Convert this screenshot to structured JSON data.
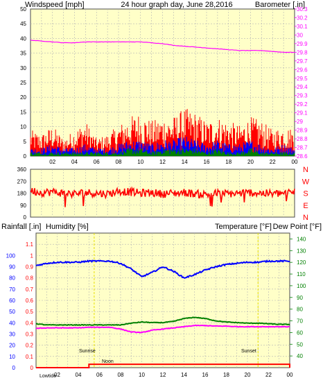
{
  "colors": {
    "plot_bg": "#ffffc8",
    "grid": "#b4b4b4",
    "frame": "#4a4a4a",
    "title": "#e8e000",
    "windspeed": "#ff0000",
    "barometer": "#ff00ff",
    "gust": "#ff0000",
    "avg": "#0000ff",
    "low": "#008000",
    "direction": "#ff0000",
    "rain": "#ff0000",
    "humidity": "#0000ff",
    "temperature": "#008000",
    "dewpoint": "#ff00ff",
    "sun": "#e8e000"
  },
  "chart_data": [
    {
      "type": "line",
      "title": "24 hour graph day, June 28,2016",
      "ylabel": "Windspeed [mph]",
      "y2label": "Barometer [.in]",
      "ylim": [
        0,
        50
      ],
      "y2lim": [
        28.6,
        30.3
      ],
      "yticks": [
        "0",
        "5",
        "10",
        "15",
        "20",
        "25",
        "30",
        "35",
        "40",
        "45",
        "50"
      ],
      "y2ticks": [
        "28.6",
        "28.7",
        "28.8",
        "28.9",
        "29",
        "29.1",
        "29.2",
        "29.3",
        "29.4",
        "29.5",
        "29.6",
        "29.7",
        "29.8",
        "29.9",
        "30",
        "30.1",
        "30.2",
        "30.3"
      ],
      "xticks": [
        "02",
        "04",
        "06",
        "08",
        "10",
        "12",
        "14",
        "16",
        "18",
        "20",
        "22",
        "00"
      ],
      "xlim": [
        0,
        24
      ],
      "grid": true,
      "series": [
        {
          "name": "Barometer",
          "axis": "right",
          "x": [
            0,
            1,
            2,
            3,
            4,
            5,
            6,
            7,
            8,
            9,
            10,
            11,
            12,
            13,
            14,
            15,
            16,
            17,
            18,
            19,
            20,
            21,
            22,
            23,
            24
          ],
          "values": [
            29.94,
            29.93,
            29.92,
            29.91,
            29.91,
            29.92,
            29.92,
            29.92,
            29.92,
            29.92,
            29.92,
            29.91,
            29.9,
            29.88,
            29.87,
            29.86,
            29.85,
            29.84,
            29.83,
            29.82,
            29.82,
            29.82,
            29.81,
            29.8,
            29.8
          ]
        },
        {
          "name": "Wind gust",
          "axis": "left",
          "x": [
            0,
            1,
            2,
            3,
            4,
            5,
            6,
            7,
            8,
            9,
            10,
            11,
            12,
            13,
            14,
            15,
            16,
            17,
            18,
            19,
            20,
            21,
            22,
            23,
            24
          ],
          "values": [
            6,
            5,
            7,
            4,
            6,
            8,
            4,
            5,
            7,
            9,
            10,
            8,
            9,
            9,
            11,
            10,
            8,
            9,
            8,
            7,
            9,
            8,
            6,
            7,
            6
          ]
        },
        {
          "name": "Wind average",
          "axis": "left",
          "x": [
            0,
            1,
            2,
            3,
            4,
            5,
            6,
            7,
            8,
            9,
            10,
            11,
            12,
            13,
            14,
            15,
            16,
            17,
            18,
            19,
            20,
            21,
            22,
            23,
            24
          ],
          "values": [
            2,
            2,
            3,
            2,
            2,
            3,
            2,
            2,
            3,
            4,
            4,
            3,
            4,
            4,
            5,
            4,
            3,
            4,
            3,
            3,
            4,
            3,
            2,
            3,
            2
          ]
        },
        {
          "name": "Wind low",
          "axis": "left",
          "x": [
            0,
            1,
            2,
            3,
            4,
            5,
            6,
            7,
            8,
            9,
            10,
            11,
            12,
            13,
            14,
            15,
            16,
            17,
            18,
            19,
            20,
            21,
            22,
            23,
            24
          ],
          "values": [
            1,
            1,
            1,
            1,
            1,
            1,
            1,
            1,
            1,
            2,
            2,
            1,
            2,
            2,
            2,
            2,
            1,
            2,
            1,
            1,
            2,
            1,
            1,
            1,
            1
          ]
        }
      ]
    },
    {
      "type": "scatter",
      "ylim": [
        0,
        360
      ],
      "yticks": [
        "0",
        "90",
        "180",
        "270",
        "360"
      ],
      "compass": [
        "N",
        "W",
        "S",
        "E",
        "N"
      ],
      "xlim": [
        0,
        24
      ],
      "series": [
        {
          "name": "Wind direction",
          "x": [
            0,
            1,
            2,
            3,
            4,
            5,
            6,
            7,
            8,
            9,
            10,
            11,
            12,
            13,
            14,
            15,
            16,
            17,
            18,
            19,
            20,
            21,
            22,
            23,
            24
          ],
          "values": [
            200,
            185,
            190,
            180,
            175,
            185,
            180,
            175,
            195,
            190,
            180,
            185,
            175,
            180,
            185,
            175,
            170,
            180,
            175,
            180,
            185,
            180,
            175,
            180,
            190
          ]
        }
      ]
    },
    {
      "type": "line",
      "ylabel": "Rainfall [.in]",
      "ylabel2": "Humidity [%]",
      "y2label": "Temperature [°F]",
      "y2label2": "Dew Point [°F]",
      "ylim": [
        0,
        1.2
      ],
      "yticks": [
        "0",
        "0.1",
        "0.2",
        "0.3",
        "0.4",
        "0.5",
        "0.6",
        "0.7",
        "0.8",
        "0.9",
        "1",
        "1.1"
      ],
      "humidity_ticks": [
        "0",
        "10",
        "20",
        "30",
        "40",
        "50",
        "60",
        "70",
        "80",
        "90",
        "100"
      ],
      "y2lim": [
        30,
        145
      ],
      "y2ticks": [
        "40",
        "50",
        "60",
        "70",
        "80",
        "90",
        "100",
        "110",
        "120",
        "130",
        "140"
      ],
      "xticks": [
        "02",
        "04",
        "06",
        "08",
        "10",
        "12",
        "14",
        "16",
        "18",
        "20",
        "22",
        "00"
      ],
      "xlim": [
        0,
        24
      ],
      "grid": true,
      "sun_labels": {
        "sunrise": "Sunrise",
        "noon": "Noon",
        "sunset": "Sunset",
        "moon": "Lowtide"
      },
      "series": [
        {
          "name": "Humidity",
          "axis": "humidity",
          "x": [
            0,
            1,
            2,
            3,
            4,
            5,
            6,
            7,
            8,
            9,
            10,
            11,
            12,
            13,
            14,
            15,
            16,
            17,
            18,
            19,
            20,
            21,
            22,
            23,
            24
          ],
          "values": [
            91,
            93,
            94,
            94,
            94,
            95,
            95,
            95,
            93,
            88,
            81,
            85,
            90,
            86,
            80,
            83,
            87,
            90,
            92,
            93,
            94,
            94,
            95,
            95,
            95
          ]
        },
        {
          "name": "Temperature",
          "axis": "right",
          "x": [
            0,
            1,
            2,
            3,
            4,
            5,
            6,
            7,
            8,
            9,
            10,
            11,
            12,
            13,
            14,
            15,
            16,
            17,
            18,
            19,
            20,
            21,
            22,
            23,
            24
          ],
          "values": [
            67.5,
            66.5,
            66.5,
            66.5,
            66.5,
            66.5,
            66.5,
            66.5,
            66.5,
            68.0,
            69.0,
            68.5,
            68.5,
            69.5,
            72.0,
            73.0,
            72.0,
            70.0,
            69.0,
            68.5,
            68.0,
            68.0,
            67.5,
            67.0,
            67.0
          ]
        },
        {
          "name": "Dew Point",
          "axis": "right",
          "x": [
            0,
            1,
            2,
            3,
            4,
            5,
            6,
            7,
            8,
            9,
            10,
            11,
            12,
            13,
            14,
            15,
            16,
            17,
            18,
            19,
            20,
            21,
            22,
            23,
            24
          ],
          "values": [
            63.5,
            64.0,
            64.0,
            64.0,
            64.0,
            64.5,
            64.5,
            64.5,
            63.0,
            60.5,
            60.0,
            62.0,
            63.0,
            64.0,
            65.0,
            66.0,
            66.0,
            65.5,
            65.5,
            65.0,
            65.0,
            65.0,
            65.0,
            65.0,
            65.0
          ]
        },
        {
          "name": "Rainfall",
          "axis": "left",
          "x": [
            0,
            1,
            2,
            3,
            4,
            5,
            6,
            7,
            8,
            9,
            10,
            11,
            12,
            13,
            14,
            15,
            16,
            17,
            18,
            19,
            20,
            21,
            22,
            23,
            24
          ],
          "values": [
            0,
            0,
            0,
            0,
            0,
            0.03,
            0.03,
            0.03,
            0.03,
            0.03,
            0.03,
            0.03,
            0.03,
            0.03,
            0.03,
            0.03,
            0.03,
            0.03,
            0.03,
            0.03,
            0.03,
            0.03,
            0.03,
            0.03,
            0
          ]
        }
      ]
    }
  ]
}
